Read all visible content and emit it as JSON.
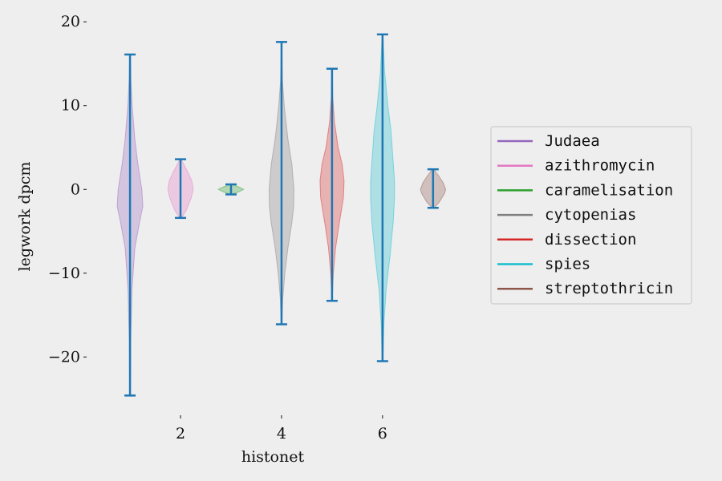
{
  "chart_data": {
    "type": "violin",
    "xlabel": "histonet",
    "ylabel": "legwork dpcm",
    "xlim": [
      0.3,
      7.4
    ],
    "ylim": [
      -26,
      20.5
    ],
    "xticks": [
      2,
      4,
      6
    ],
    "yticks": [
      -20,
      -10,
      0,
      10,
      20
    ],
    "grid": false,
    "legend_position": "right",
    "series": [
      {
        "name": "Judaea",
        "position": 1,
        "min": -24.6,
        "max": 16.1,
        "color": "#9467bd",
        "density_scale": 0.6,
        "profile": [
          [
            -24.6,
            0.02
          ],
          [
            -18,
            0.05
          ],
          [
            -12,
            0.13
          ],
          [
            -7,
            0.32
          ],
          [
            -4,
            0.62
          ],
          [
            -2,
            0.85
          ],
          [
            0,
            0.78
          ],
          [
            3,
            0.52
          ],
          [
            6,
            0.32
          ],
          [
            10,
            0.14
          ],
          [
            13,
            0.06
          ],
          [
            16.1,
            0.02
          ]
        ]
      },
      {
        "name": "azithromycin",
        "position": 2,
        "min": -3.4,
        "max": 3.6,
        "color": "#e377c2",
        "density_scale": 0.5,
        "profile": [
          [
            -3.4,
            0.08
          ],
          [
            -2.5,
            0.45
          ],
          [
            -1,
            0.85
          ],
          [
            0,
            1
          ],
          [
            1,
            0.9
          ],
          [
            2,
            0.6
          ],
          [
            3,
            0.25
          ],
          [
            3.6,
            0.05
          ]
        ]
      },
      {
        "name": "caramelisation",
        "position": 3,
        "min": -0.6,
        "max": 0.6,
        "color": "#2ca02c",
        "density_scale": 0.5,
        "profile": [
          [
            -0.6,
            0.05
          ],
          [
            -0.3,
            0.6
          ],
          [
            0,
            1
          ],
          [
            0.3,
            0.6
          ],
          [
            0.6,
            0.05
          ]
        ]
      },
      {
        "name": "cytopenias",
        "position": 4,
        "min": -16.1,
        "max": 17.6,
        "color": "#7f7f7f",
        "density_scale": 0.6,
        "profile": [
          [
            -16.1,
            0.02
          ],
          [
            -13,
            0.08
          ],
          [
            -10,
            0.22
          ],
          [
            -7,
            0.42
          ],
          [
            -4,
            0.68
          ],
          [
            -2,
            0.8
          ],
          [
            0,
            0.82
          ],
          [
            3,
            0.68
          ],
          [
            6,
            0.42
          ],
          [
            10,
            0.18
          ],
          [
            13,
            0.06
          ],
          [
            17.6,
            0.01
          ]
        ]
      },
      {
        "name": "dissection",
        "position": 5,
        "min": -13.3,
        "max": 14.4,
        "color": "#d62728",
        "density_scale": 0.5,
        "profile": [
          [
            -13.3,
            0.02
          ],
          [
            -10,
            0.1
          ],
          [
            -7,
            0.28
          ],
          [
            -4,
            0.58
          ],
          [
            -1,
            0.9
          ],
          [
            1,
            0.95
          ],
          [
            3,
            0.8
          ],
          [
            5,
            0.48
          ],
          [
            8,
            0.2
          ],
          [
            11,
            0.06
          ],
          [
            14.4,
            0.01
          ]
        ]
      },
      {
        "name": "spies",
        "position": 6,
        "min": -20.5,
        "max": 18.5,
        "color": "#17becf",
        "density_scale": 0.7,
        "profile": [
          [
            -20.5,
            0.02
          ],
          [
            -16,
            0.08
          ],
          [
            -12,
            0.2
          ],
          [
            -8,
            0.42
          ],
          [
            -4,
            0.6
          ],
          [
            -1,
            0.68
          ],
          [
            1,
            0.68
          ],
          [
            4,
            0.58
          ],
          [
            7,
            0.48
          ],
          [
            10,
            0.3
          ],
          [
            14,
            0.12
          ],
          [
            18.5,
            0.02
          ]
        ]
      },
      {
        "name": "streptothricin",
        "position": 7,
        "min": -2.2,
        "max": 2.4,
        "color": "#8c564b",
        "density_scale": 0.5,
        "profile": [
          [
            -2.2,
            0.08
          ],
          [
            -1.5,
            0.5
          ],
          [
            -0.5,
            0.9
          ],
          [
            0,
            1
          ],
          [
            0.8,
            0.8
          ],
          [
            1.6,
            0.45
          ],
          [
            2.4,
            0.05
          ]
        ]
      }
    ],
    "stat_color": "#1f77b4"
  }
}
